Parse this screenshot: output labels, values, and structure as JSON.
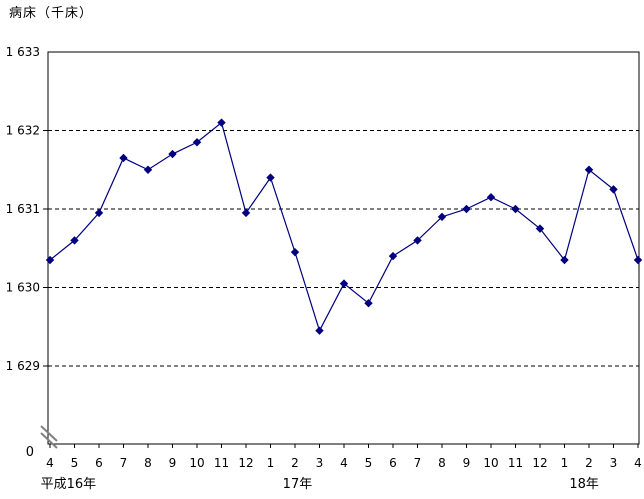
{
  "colors": {
    "series": "#000080",
    "axis": "#000000",
    "grid": "#000000",
    "text": "#000000",
    "background": "#ffffff",
    "break_mark": "#808080"
  },
  "chart_data": {
    "type": "line",
    "title": "病床（千床）",
    "unit_label": "病床（千床）",
    "xlabel": "",
    "ylabel": "病床（千床）",
    "legend": "none",
    "grid": "horizontal dashed",
    "axis_break_at_origin": true,
    "ylim_display": [
      1629,
      1633
    ],
    "y_ticks": [
      {
        "label": "1 633",
        "value": 1633
      },
      {
        "label": "1 632",
        "value": 1632
      },
      {
        "label": "1 631",
        "value": 1631
      },
      {
        "label": "1 630",
        "value": 1630
      },
      {
        "label": "1 629",
        "value": 1629
      }
    ],
    "origin_tick_label": "0",
    "x_labels": [
      "4",
      "5",
      "6",
      "7",
      "8",
      "9",
      "10",
      "11",
      "12",
      "1",
      "2",
      "3",
      "4",
      "5",
      "6",
      "7",
      "8",
      "9",
      "10",
      "11",
      "12",
      "1",
      "2",
      "3",
      "4"
    ],
    "year_labels": [
      {
        "label": "平成16年",
        "center_index": 0.75
      },
      {
        "label": "17年",
        "center_index": 10.1
      },
      {
        "label": "18年",
        "center_index": 21.8
      }
    ],
    "series": [
      {
        "name": "病床",
        "marker": "diamond",
        "values": [
          1630.35,
          1630.6,
          1630.95,
          1631.65,
          1631.5,
          1631.7,
          1631.85,
          1632.1,
          1630.95,
          1631.4,
          1630.45,
          1629.45,
          1630.05,
          1629.8,
          1630.4,
          1630.6,
          1630.9,
          1631.0,
          1631.15,
          1631.0,
          1630.75,
          1630.35,
          1631.5,
          1631.25,
          1630.35
        ]
      }
    ]
  }
}
